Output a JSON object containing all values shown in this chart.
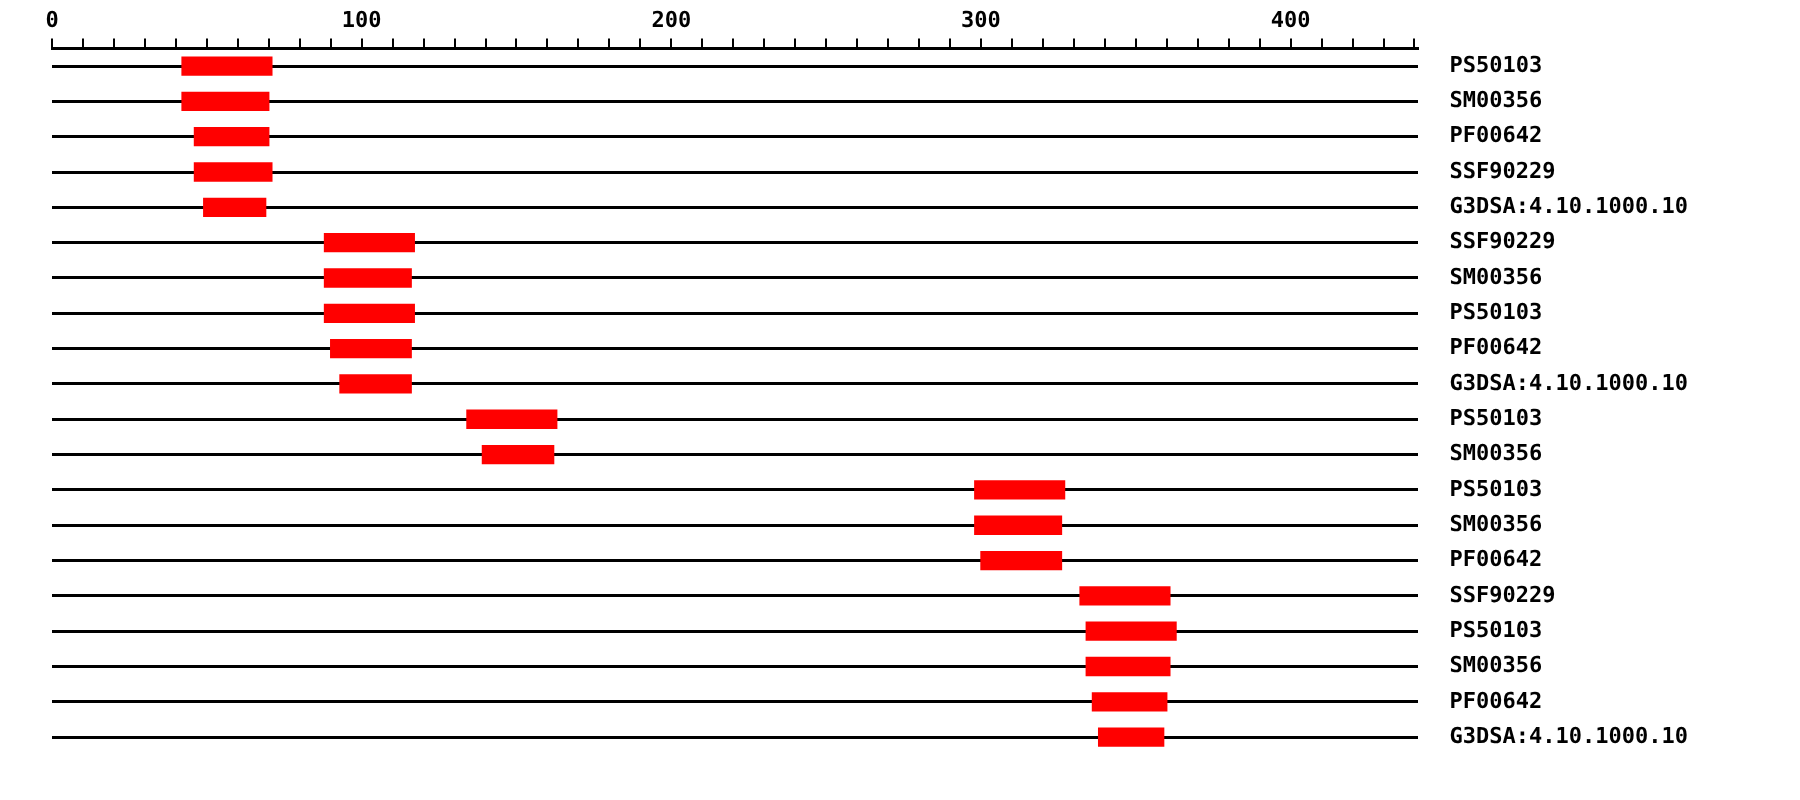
{
  "chart_data": {
    "type": "bar",
    "orientation": "horizontal",
    "categories": [
      "PS50103",
      "SM00356",
      "PF00642",
      "SSF90229",
      "G3DSA:4.10.1000.10",
      "SSF90229",
      "SM00356",
      "PS50103",
      "PF00642",
      "G3DSA:4.10.1000.10",
      "PS50103",
      "SM00356",
      "PS50103",
      "SM00356",
      "PF00642",
      "SSF90229",
      "PS50103",
      "SM00356",
      "PF00642",
      "G3DSA:4.10.1000.10"
    ],
    "base": [
      42,
      42,
      46,
      46,
      49,
      88,
      88,
      88,
      90,
      93,
      134,
      139,
      298,
      298,
      300,
      332,
      334,
      334,
      336,
      338
    ],
    "values": [
      29,
      28,
      24,
      25,
      20,
      29,
      28,
      29,
      26,
      23,
      29,
      23,
      29,
      28,
      26,
      29,
      29,
      27,
      24,
      21
    ],
    "color": "#ff0000",
    "xlim": [
      0,
      441
    ],
    "xticks": [
      0,
      {
        "value": 10,
        "label": null
      },
      {
        "value": 20,
        "label": null
      },
      {
        "value": 30,
        "label": null
      },
      {
        "value": 40,
        "label": null
      },
      {
        "value": 50,
        "label": null
      },
      {
        "value": 60,
        "label": null
      },
      {
        "value": 70,
        "label": null
      },
      {
        "value": 80,
        "label": null
      },
      {
        "value": 90,
        "label": null
      },
      100,
      {
        "value": 110,
        "label": null
      },
      {
        "value": 120,
        "label": null
      },
      {
        "value": 130,
        "label": null
      },
      {
        "value": 140,
        "label": null
      },
      {
        "value": 150,
        "label": null
      },
      {
        "value": 160,
        "label": null
      },
      {
        "value": 170,
        "label": null
      },
      {
        "value": 180,
        "label": null
      },
      {
        "value": 190,
        "label": null
      },
      200,
      {
        "value": 210,
        "label": null
      },
      {
        "value": 220,
        "label": null
      },
      {
        "value": 230,
        "label": null
      },
      {
        "value": 240,
        "label": null
      },
      {
        "value": 250,
        "label": null
      },
      {
        "value": 260,
        "label": null
      },
      {
        "value": 270,
        "label": null
      },
      {
        "value": 280,
        "label": null
      },
      {
        "value": 290,
        "label": null
      },
      300,
      {
        "value": 310,
        "label": null
      },
      {
        "value": 320,
        "label": null
      },
      {
        "value": 330,
        "label": null
      },
      {
        "value": 340,
        "label": null
      },
      {
        "value": 350,
        "label": null
      },
      {
        "value": 360,
        "label": null
      },
      {
        "value": 370,
        "label": null
      },
      {
        "value": 380,
        "label": null
      },
      {
        "value": 390,
        "label": null
      },
      400,
      {
        "value": 410,
        "label": null
      },
      {
        "value": 420,
        "label": null
      },
      {
        "value": 430,
        "label": null
      },
      {
        "value": 440,
        "label": null
      }
    ],
    "grid": "y",
    "legend": false
  }
}
